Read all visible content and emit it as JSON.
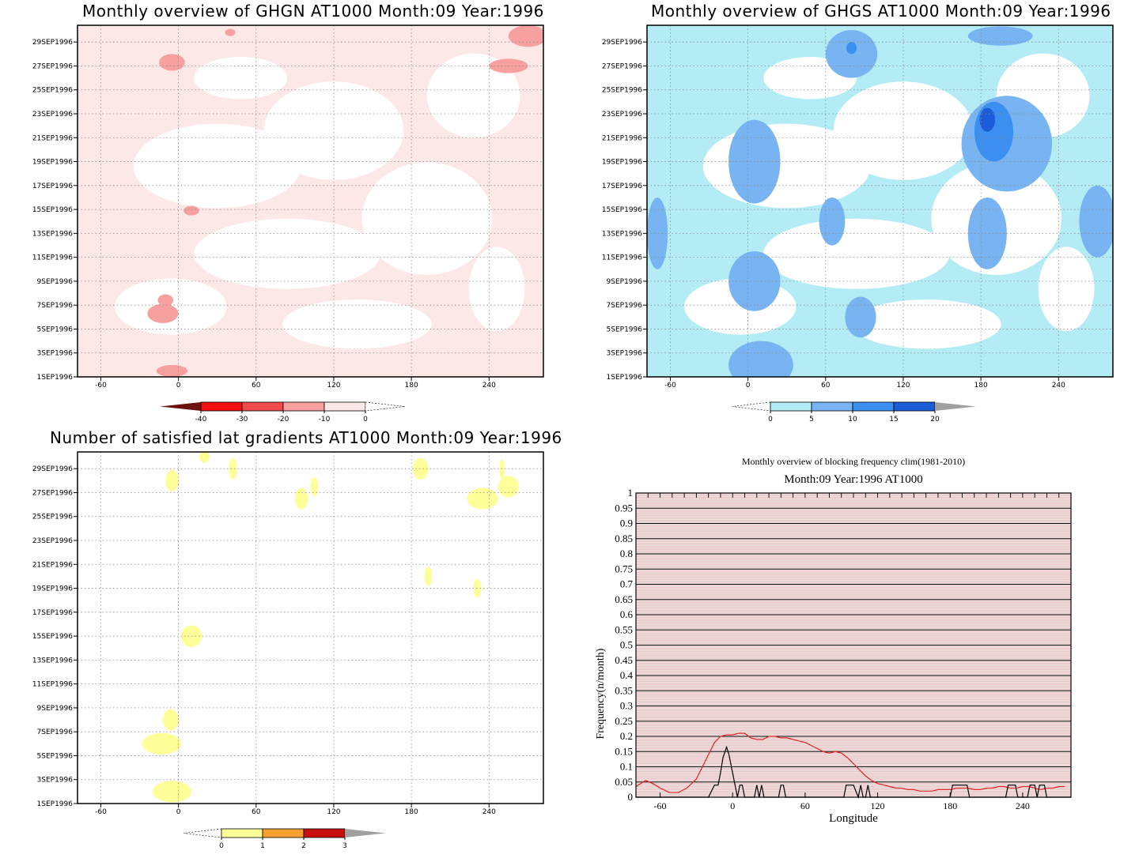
{
  "chart_data": [
    {
      "id": "ghgn",
      "type": "heatmap",
      "title": "Monthly overview of GHGN AT1000 Month:09 Year:1996",
      "x_ticks": [
        -60,
        0,
        60,
        120,
        180,
        240
      ],
      "y_ticks": [
        "1SEP1996",
        "3SEP1996",
        "5SEP1996",
        "7SEP1996",
        "9SEP1996",
        "11SEP1996",
        "13SEP1996",
        "15SEP1996",
        "17SEP1996",
        "19SEP1996",
        "21SEP1996",
        "23SEP1996",
        "25SEP1996",
        "27SEP1996",
        "29SEP1996"
      ],
      "xlim": [
        -78,
        282
      ],
      "colorbar": {
        "labels": [
          "-40",
          "-30",
          "-20",
          "-10",
          "0"
        ],
        "colors": [
          "#6e0f0f",
          "#f20f0f",
          "#f04a4a",
          "#f7a0a0",
          "#fde8e8"
        ]
      },
      "regions": [
        {
          "level": -10,
          "cx": -5,
          "cy": 27.3,
          "rx": 10,
          "ry": 0.7
        },
        {
          "level": -10,
          "cx": 40,
          "cy": 29.8,
          "rx": 4,
          "ry": 0.3
        },
        {
          "level": -10,
          "cx": 255,
          "cy": 27.0,
          "rx": 15,
          "ry": 0.6
        },
        {
          "level": -10,
          "cx": 270,
          "cy": 29.5,
          "rx": 15,
          "ry": 0.9
        },
        {
          "level": -10,
          "cx": 10,
          "cy": 14.9,
          "rx": 6,
          "ry": 0.4
        },
        {
          "level": -10,
          "cx": -12,
          "cy": 6.3,
          "rx": 12,
          "ry": 0.8
        },
        {
          "level": -10,
          "cx": -10,
          "cy": 7.4,
          "rx": 6,
          "ry": 0.5
        },
        {
          "level": -10,
          "cx": -5,
          "cy": 1.5,
          "rx": 12,
          "ry": 0.5
        }
      ]
    },
    {
      "id": "ghgs",
      "type": "heatmap",
      "title": "Monthly overview of GHGS AT1000 Month:09 Year:1996",
      "x_ticks": [
        -60,
        0,
        60,
        120,
        180,
        240
      ],
      "y_ticks": [
        "1SEP1996",
        "3SEP1996",
        "5SEP1996",
        "7SEP1996",
        "9SEP1996",
        "11SEP1996",
        "13SEP1996",
        "15SEP1996",
        "17SEP1996",
        "19SEP1996",
        "21SEP1996",
        "23SEP1996",
        "25SEP1996",
        "27SEP1996",
        "29SEP1996"
      ],
      "xlim": [
        -78,
        282
      ],
      "colorbar": {
        "labels": [
          "0",
          "5",
          "10",
          "15",
          "20"
        ],
        "colors": [
          "#b4ecf5",
          "#79b4f2",
          "#3a8ff0",
          "#1c5cd8",
          "#a0a0a0"
        ]
      },
      "regions": [
        {
          "level": 5,
          "cx": 5,
          "cy": 19.0,
          "rx": 20,
          "ry": 3.5
        },
        {
          "level": 5,
          "cx": 80,
          "cy": 28.0,
          "rx": 20,
          "ry": 2.0
        },
        {
          "level": 5,
          "cx": 200,
          "cy": 20.5,
          "rx": 35,
          "ry": 4.0
        },
        {
          "level": 5,
          "cx": 195,
          "cy": 29.5,
          "rx": 25,
          "ry": 0.8
        },
        {
          "level": 5,
          "cx": 5,
          "cy": 9.0,
          "rx": 20,
          "ry": 2.5
        },
        {
          "level": 5,
          "cx": 87,
          "cy": 6.0,
          "rx": 12,
          "ry": 1.7
        },
        {
          "level": 5,
          "cx": 10,
          "cy": 2.0,
          "rx": 25,
          "ry": 2.0
        },
        {
          "level": 5,
          "cx": 185,
          "cy": 13.0,
          "rx": 15,
          "ry": 3.0
        },
        {
          "level": 5,
          "cx": -70,
          "cy": 13.0,
          "rx": 8,
          "ry": 3.0
        },
        {
          "level": 5,
          "cx": 65,
          "cy": 14.0,
          "rx": 10,
          "ry": 2.0
        },
        {
          "level": 5,
          "cx": 270,
          "cy": 14.0,
          "rx": 14,
          "ry": 3.0
        },
        {
          "level": 10,
          "cx": 190,
          "cy": 21.5,
          "rx": 15,
          "ry": 2.5
        },
        {
          "level": 10,
          "cx": 80,
          "cy": 28.5,
          "rx": 4,
          "ry": 0.5
        },
        {
          "level": 15,
          "cx": 185,
          "cy": 22.5,
          "rx": 6,
          "ry": 1.0
        }
      ]
    },
    {
      "id": "nsat",
      "type": "heatmap",
      "title": "Number of satisfied lat gradients AT1000 Month:09 Year:1996",
      "x_ticks": [
        -60,
        0,
        60,
        120,
        180,
        240
      ],
      "y_ticks": [
        "1SEP1996",
        "3SEP1996",
        "5SEP1996",
        "7SEP1996",
        "9SEP1996",
        "11SEP1996",
        "13SEP1996",
        "15SEP1996",
        "17SEP1996",
        "19SEP1996",
        "21SEP1996",
        "23SEP1996",
        "25SEP1996",
        "27SEP1996",
        "29SEP1996"
      ],
      "xlim": [
        -78,
        282
      ],
      "colorbar": {
        "labels": [
          "0",
          "1",
          "2",
          "3"
        ],
        "colors": [
          "#ffff99",
          "#f5a030",
          "#c80f0f",
          "#a0a0a0"
        ]
      },
      "regions": [
        {
          "level": 1,
          "cx": -5,
          "cy": 28.0,
          "rx": 5,
          "ry": 0.9
        },
        {
          "level": 1,
          "cx": 20,
          "cy": 30.0,
          "rx": 4,
          "ry": 0.5
        },
        {
          "level": 1,
          "cx": 42,
          "cy": 29.0,
          "rx": 3,
          "ry": 0.9
        },
        {
          "level": 1,
          "cx": 95,
          "cy": 26.5,
          "rx": 5,
          "ry": 0.9
        },
        {
          "level": 1,
          "cx": 105,
          "cy": 27.5,
          "rx": 3,
          "ry": 0.8
        },
        {
          "level": 1,
          "cx": 187,
          "cy": 29.0,
          "rx": 6,
          "ry": 0.9
        },
        {
          "level": 1,
          "cx": 235,
          "cy": 26.5,
          "rx": 12,
          "ry": 0.9
        },
        {
          "level": 1,
          "cx": 255,
          "cy": 27.5,
          "rx": 8,
          "ry": 0.9
        },
        {
          "level": 1,
          "cx": 250,
          "cy": 29.0,
          "rx": 2,
          "ry": 0.8
        },
        {
          "level": 1,
          "cx": 193,
          "cy": 20.0,
          "rx": 3,
          "ry": 0.8
        },
        {
          "level": 1,
          "cx": 231,
          "cy": 19.0,
          "rx": 3,
          "ry": 0.8
        },
        {
          "level": 1,
          "cx": 10,
          "cy": 15.0,
          "rx": 8,
          "ry": 0.9
        },
        {
          "level": 1,
          "cx": -6,
          "cy": 8.0,
          "rx": 6,
          "ry": 0.9
        },
        {
          "level": 1,
          "cx": -13,
          "cy": 6.0,
          "rx": 15,
          "ry": 0.9
        },
        {
          "level": 1,
          "cx": -5,
          "cy": 2.0,
          "rx": 15,
          "ry": 0.9
        }
      ]
    },
    {
      "id": "blockfreq",
      "type": "line",
      "title": "Monthly overview of blocking frequency clim(1981-2010)",
      "subtitle": "Month:09 Year:1996  AT1000",
      "xlabel": "Longitude",
      "ylabel": "Frequency(n/month)",
      "x_ticks": [
        -60,
        0,
        60,
        120,
        180,
        240
      ],
      "y_ticks": [
        "0",
        "0.05",
        "0.1",
        "0.15",
        "0.2",
        "0.25",
        "0.3",
        "0.35",
        "0.4",
        "0.45",
        "0.5",
        "0.55",
        "0.6",
        "0.65",
        "0.7",
        "0.75",
        "0.8",
        "0.85",
        "0.9",
        "0.95",
        "1"
      ],
      "xlim": [
        -80,
        280
      ],
      "ylim": [
        0,
        1
      ],
      "series": [
        {
          "color": "#e02020",
          "x": [
            -80,
            -72,
            -66,
            -60,
            -52,
            -45,
            -38,
            -30,
            -25,
            -20,
            -15,
            -10,
            -5,
            0,
            5,
            10,
            15,
            20,
            25,
            30,
            35,
            40,
            45,
            50,
            55,
            60,
            65,
            70,
            75,
            80,
            85,
            90,
            95,
            100,
            105,
            110,
            115,
            120,
            125,
            130,
            135,
            140,
            145,
            150,
            155,
            160,
            165,
            170,
            175,
            180,
            185,
            190,
            195,
            200,
            205,
            210,
            215,
            220,
            225,
            230,
            235,
            240,
            245,
            250,
            255,
            260,
            265,
            270,
            275
          ],
          "y": [
            0.035,
            0.055,
            0.045,
            0.03,
            0.015,
            0.015,
            0.03,
            0.06,
            0.1,
            0.14,
            0.18,
            0.2,
            0.205,
            0.205,
            0.21,
            0.21,
            0.195,
            0.19,
            0.19,
            0.2,
            0.2,
            0.195,
            0.195,
            0.19,
            0.185,
            0.18,
            0.17,
            0.16,
            0.15,
            0.145,
            0.15,
            0.145,
            0.13,
            0.11,
            0.09,
            0.07,
            0.055,
            0.045,
            0.04,
            0.035,
            0.03,
            0.03,
            0.025,
            0.025,
            0.02,
            0.02,
            0.02,
            0.025,
            0.025,
            0.025,
            0.03,
            0.03,
            0.03,
            0.025,
            0.025,
            0.03,
            0.03,
            0.035,
            0.035,
            0.03,
            0.03,
            0.035,
            0.035,
            0.03,
            0.025,
            0.03,
            0.03,
            0.035,
            0.035
          ]
        },
        {
          "color": "#000000",
          "x": [
            -80,
            -20,
            -15,
            -12,
            -10,
            -8,
            -5,
            -3,
            0,
            2,
            4,
            6,
            8,
            10,
            12,
            14,
            18,
            20,
            22,
            24,
            26,
            28,
            38,
            40,
            42,
            44,
            46,
            92,
            94,
            96,
            98,
            100,
            104,
            106,
            108,
            110,
            112,
            114,
            180,
            182,
            186,
            190,
            194,
            196,
            198,
            200,
            210,
            226,
            228,
            230,
            232,
            234,
            236,
            240,
            244,
            246,
            248,
            250,
            252,
            254,
            256,
            258,
            260,
            262,
            280
          ],
          "y": [
            0,
            0,
            0.04,
            0.04,
            0.08,
            0.13,
            0.165,
            0.14,
            0.08,
            0.04,
            0,
            0.04,
            0.04,
            0,
            0,
            0,
            0,
            0.04,
            0,
            0.04,
            0,
            0,
            0,
            0.04,
            0.04,
            0,
            0,
            0,
            0.04,
            0.04,
            0.04,
            0.04,
            0,
            0.04,
            0,
            0,
            0.04,
            0,
            0,
            0.04,
            0.04,
            0.04,
            0.04,
            0,
            0,
            0,
            0,
            0,
            0.04,
            0.04,
            0.04,
            0.04,
            0,
            0,
            0,
            0.04,
            0.04,
            0.04,
            0,
            0.04,
            0.04,
            0.04,
            0,
            0,
            0
          ]
        }
      ]
    }
  ]
}
